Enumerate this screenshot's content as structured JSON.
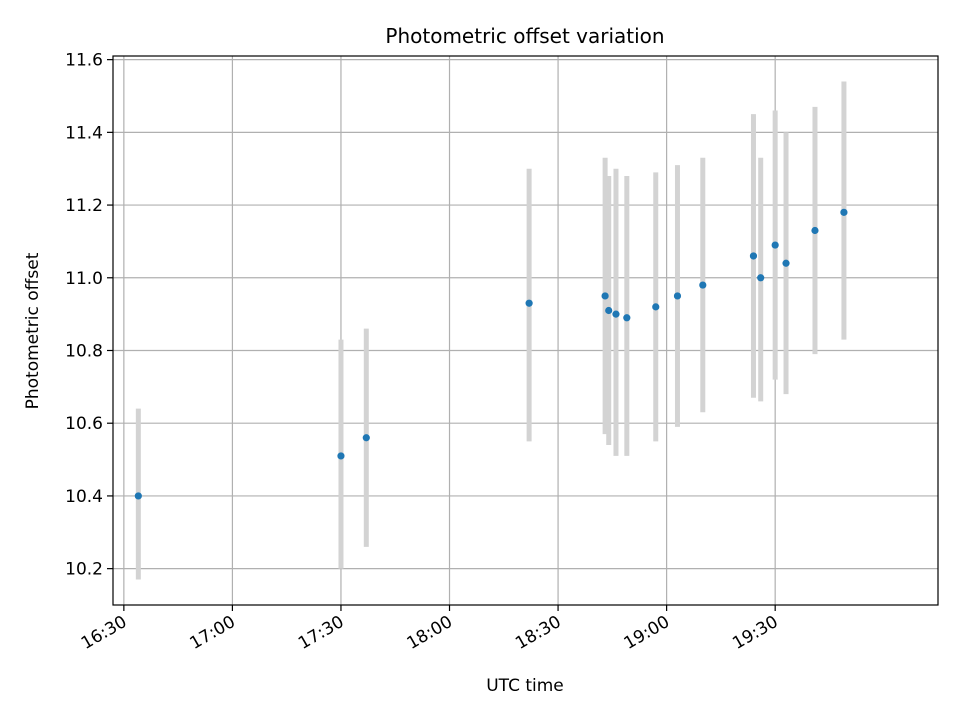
{
  "chart_data": {
    "type": "scatter",
    "title": "Photometric offset variation",
    "xlabel": "UTC time",
    "ylabel": "Photometric offset",
    "x_is_time": true,
    "xlim": [
      "16:27",
      "20:15"
    ],
    "ylim": [
      10.1,
      11.61
    ],
    "xticks": [
      "16:30",
      "17:00",
      "17:30",
      "18:00",
      "18:30",
      "19:00",
      "19:30"
    ],
    "yticks": [
      10.2,
      10.4,
      10.6,
      10.8,
      11.0,
      11.2,
      11.4,
      11.6
    ],
    "ytick_labels": [
      "10.2",
      "10.4",
      "10.6",
      "10.8",
      "11.0",
      "11.2",
      "11.4",
      "11.6"
    ],
    "grid": true,
    "colors": {
      "point": "#1f77b4",
      "errorbar": "#d3d3d3",
      "grid": "#b0b0b0"
    },
    "series": [
      {
        "points": [
          {
            "x": "16:34",
            "y": 10.4,
            "err_low": 10.17,
            "err_high": 10.64
          },
          {
            "x": "17:30",
            "y": 10.51,
            "err_low": 10.2,
            "err_high": 10.83
          },
          {
            "x": "17:37",
            "y": 10.56,
            "err_low": 10.26,
            "err_high": 10.86
          },
          {
            "x": "18:22",
            "y": 10.93,
            "err_low": 10.55,
            "err_high": 11.3
          },
          {
            "x": "18:43",
            "y": 10.95,
            "err_low": 10.57,
            "err_high": 11.33
          },
          {
            "x": "18:44",
            "y": 10.91,
            "err_low": 10.54,
            "err_high": 11.28
          },
          {
            "x": "18:46",
            "y": 10.9,
            "err_low": 10.51,
            "err_high": 11.3
          },
          {
            "x": "18:49",
            "y": 10.89,
            "err_low": 10.51,
            "err_high": 11.28
          },
          {
            "x": "18:57",
            "y": 10.92,
            "err_low": 10.55,
            "err_high": 11.29
          },
          {
            "x": "19:03",
            "y": 10.95,
            "err_low": 10.59,
            "err_high": 11.31
          },
          {
            "x": "19:10",
            "y": 10.98,
            "err_low": 10.63,
            "err_high": 11.33
          },
          {
            "x": "19:24",
            "y": 11.06,
            "err_low": 10.67,
            "err_high": 11.45
          },
          {
            "x": "19:26",
            "y": 11.0,
            "err_low": 10.66,
            "err_high": 11.33
          },
          {
            "x": "19:30",
            "y": 11.09,
            "err_low": 10.72,
            "err_high": 11.46
          },
          {
            "x": "19:33",
            "y": 11.04,
            "err_low": 10.68,
            "err_high": 11.4
          },
          {
            "x": "19:41",
            "y": 11.13,
            "err_low": 10.79,
            "err_high": 11.47
          },
          {
            "x": "19:49",
            "y": 11.18,
            "err_low": 10.83,
            "err_high": 11.54
          }
        ]
      }
    ]
  }
}
